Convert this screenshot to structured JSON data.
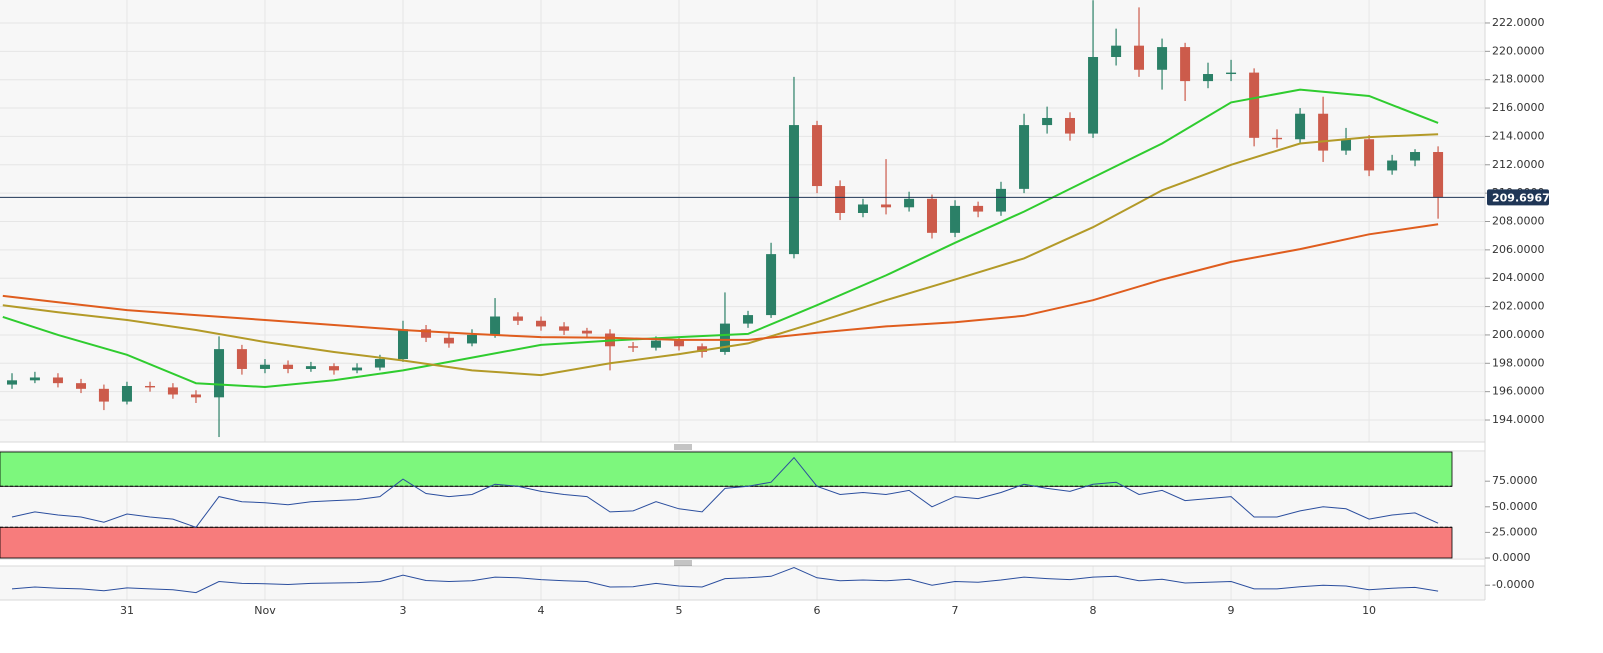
{
  "chart_data": [
    {
      "type": "candlestick",
      "x": [
        0.167,
        0.333,
        0.5,
        0.667,
        0.833,
        1.0,
        1.167,
        1.333,
        1.5,
        1.667,
        1.833,
        2.0,
        2.167,
        2.333,
        2.5,
        2.667,
        2.833,
        3.0,
        3.167,
        3.333,
        3.5,
        3.667,
        3.833,
        4.0,
        4.167,
        4.333,
        4.5,
        4.667,
        4.833,
        5.0,
        5.167,
        5.333,
        5.5,
        5.667,
        5.833,
        6.0,
        6.167,
        6.333,
        6.5,
        6.667,
        6.833,
        7.0,
        7.167,
        7.333,
        7.5,
        7.667,
        7.833,
        8.0,
        8.167,
        8.333,
        8.5,
        8.667,
        8.833,
        9.0,
        9.167,
        9.333,
        9.5,
        9.667,
        9.833,
        10.0,
        10.167,
        10.333,
        10.5
      ],
      "open": [
        196.5,
        196.8,
        197.0,
        196.6,
        196.2,
        195.3,
        196.4,
        196.3,
        195.8,
        195.6,
        199.0,
        197.6,
        197.9,
        197.6,
        197.8,
        197.5,
        197.7,
        198.3,
        200.4,
        199.8,
        199.4,
        200.0,
        201.3,
        201.0,
        200.6,
        200.3,
        200.1,
        199.2,
        199.1,
        199.6,
        199.2,
        198.8,
        200.8,
        201.4,
        205.7,
        214.8,
        210.5,
        208.6,
        209.2,
        209.0,
        209.6,
        207.2,
        209.1,
        208.7,
        210.3,
        214.8,
        215.3,
        214.2,
        219.6,
        220.4,
        218.7,
        220.3,
        217.9,
        218.4,
        218.5,
        213.9,
        213.8,
        215.6,
        213.0,
        213.8,
        211.6,
        212.3,
        212.9
      ],
      "high": [
        197.3,
        197.4,
        197.3,
        196.9,
        196.5,
        196.7,
        196.7,
        196.6,
        196.1,
        199.9,
        199.3,
        198.3,
        198.2,
        198.1,
        198.0,
        198.0,
        198.6,
        201.0,
        200.7,
        200.1,
        200.4,
        202.6,
        201.6,
        201.3,
        200.9,
        200.5,
        200.4,
        199.5,
        199.9,
        199.9,
        199.4,
        203.0,
        201.7,
        206.5,
        218.2,
        215.1,
        210.9,
        209.6,
        212.4,
        210.1,
        209.9,
        209.5,
        209.4,
        210.8,
        215.6,
        216.1,
        215.7,
        223.6,
        221.6,
        223.1,
        220.9,
        220.6,
        219.2,
        219.4,
        218.8,
        214.5,
        216.0,
        216.8,
        214.6,
        214.1,
        212.7,
        213.1,
        213.3
      ],
      "low": [
        196.2,
        196.6,
        196.3,
        195.9,
        194.7,
        195.1,
        196.0,
        195.5,
        195.2,
        192.8,
        197.2,
        197.3,
        197.3,
        197.4,
        197.2,
        197.3,
        197.5,
        198.1,
        199.5,
        199.1,
        199.2,
        199.8,
        200.7,
        200.3,
        200.0,
        199.8,
        197.5,
        198.8,
        198.9,
        198.9,
        198.4,
        198.6,
        200.5,
        201.2,
        205.4,
        210.0,
        208.1,
        208.3,
        208.5,
        208.7,
        206.8,
        206.9,
        208.3,
        208.4,
        210.0,
        214.2,
        213.7,
        213.9,
        219.0,
        218.2,
        217.3,
        216.5,
        217.4,
        217.9,
        213.3,
        213.2,
        213.5,
        212.2,
        212.7,
        211.2,
        211.3,
        211.9,
        208.2
      ],
      "close": [
        196.8,
        197.0,
        196.6,
        196.2,
        195.3,
        196.4,
        196.3,
        195.8,
        195.6,
        199.0,
        197.6,
        197.9,
        197.6,
        197.8,
        197.5,
        197.7,
        198.3,
        200.4,
        199.8,
        199.4,
        200.0,
        201.3,
        201.0,
        200.6,
        200.3,
        200.1,
        199.2,
        199.1,
        199.6,
        199.2,
        198.8,
        200.8,
        201.4,
        205.7,
        214.8,
        210.5,
        208.6,
        209.2,
        209.0,
        209.6,
        207.2,
        209.1,
        208.7,
        210.3,
        214.8,
        215.3,
        214.2,
        219.6,
        220.4,
        218.7,
        220.3,
        217.9,
        218.4,
        218.5,
        213.9,
        213.8,
        215.6,
        213.0,
        213.8,
        211.6,
        212.3,
        212.9,
        209.7
      ],
      "up_color": "#2b8067",
      "down_color": "#cc5b4b",
      "series": [
        {
          "color": "#2fcc2f",
          "x": [
            0.1,
            0.5,
            1.0,
            1.5,
            2.0,
            2.5,
            3.0,
            3.5,
            4.0,
            4.5,
            5.0,
            5.5,
            6.0,
            6.5,
            7.0,
            7.5,
            8.0,
            8.5,
            9.0,
            9.5,
            10.0,
            10.5
          ],
          "values": [
            201.27,
            200.0,
            198.6,
            196.6,
            196.33,
            196.8,
            197.5,
            198.4,
            199.3,
            199.6,
            199.85,
            200.07,
            202.1,
            204.2,
            206.5,
            208.7,
            211.1,
            213.5,
            216.4,
            217.3,
            216.85,
            214.95
          ]
        },
        {
          "color": "#b39a28",
          "x": [
            0.1,
            0.5,
            1.0,
            1.5,
            2.0,
            2.5,
            3.0,
            3.5,
            4.0,
            4.5,
            5.0,
            5.5,
            6.0,
            6.5,
            7.0,
            7.5,
            8.0,
            8.5,
            9.0,
            9.5,
            10.0,
            10.5
          ],
          "values": [
            202.1,
            201.6,
            201.05,
            200.35,
            199.5,
            198.8,
            198.2,
            197.5,
            197.17,
            198.0,
            198.65,
            199.4,
            200.9,
            202.45,
            203.9,
            205.4,
            207.6,
            210.2,
            212.0,
            213.5,
            213.95,
            214.15
          ]
        },
        {
          "color": "#df5d1e",
          "x": [
            0.1,
            0.5,
            1.0,
            1.5,
            2.0,
            2.5,
            3.0,
            3.5,
            4.0,
            4.5,
            5.0,
            5.5,
            6.0,
            6.5,
            7.0,
            7.5,
            8.0,
            8.5,
            9.0,
            9.5,
            10.0,
            10.5
          ],
          "values": [
            202.75,
            202.3,
            201.75,
            201.4,
            201.05,
            200.7,
            200.35,
            200.07,
            199.85,
            199.8,
            199.65,
            199.65,
            200.15,
            200.6,
            200.9,
            201.35,
            202.45,
            203.9,
            205.15,
            206.05,
            207.1,
            207.8
          ]
        }
      ],
      "last_price": 209.69674,
      "last_price_color": "#1f3656",
      "xlim": [
        0.08,
        10.84
      ],
      "xticks": [
        {
          "value": 1,
          "label": "31"
        },
        {
          "value": 2,
          "label": "Nov"
        },
        3,
        4,
        5,
        6,
        7,
        8,
        9,
        10
      ],
      "ylim": [
        192.45,
        223.62
      ],
      "yticks": [
        {
          "value": 194,
          "label": "194.0000"
        },
        {
          "value": 196,
          "label": "196.0000"
        },
        {
          "value": 198,
          "label": "198.0000"
        },
        {
          "value": 200,
          "label": "200.0000"
        },
        {
          "value": 202,
          "label": "202.0000"
        },
        {
          "value": 204,
          "label": "204.0000"
        },
        {
          "value": 206,
          "label": "206.0000"
        },
        {
          "value": 208,
          "label": "208.0000"
        },
        {
          "value": 210,
          "label": "210.0000"
        },
        {
          "value": 212,
          "label": "212.0000"
        },
        {
          "value": 214,
          "label": "214.0000"
        },
        {
          "value": 216,
          "label": "216.0000"
        },
        {
          "value": 218,
          "label": "218.0000"
        },
        {
          "value": 220,
          "label": "220.0000"
        },
        {
          "value": 222,
          "label": "222.0000"
        }
      ],
      "grid": true
    },
    {
      "type": "line",
      "color": "#2b4e9e",
      "values": [
        40,
        45,
        42,
        40,
        35,
        43,
        40,
        38,
        30,
        60,
        55,
        54,
        52,
        55,
        56,
        57,
        60,
        77,
        63,
        60,
        62,
        72,
        70,
        65,
        62,
        60,
        45,
        46,
        55,
        48,
        45,
        68,
        70,
        74,
        98,
        70,
        62,
        64,
        62,
        66,
        50,
        60,
        58,
        64,
        72,
        68,
        65,
        72,
        74,
        62,
        66,
        56,
        58,
        60,
        40,
        40,
        46,
        50,
        48,
        38,
        42,
        44,
        34
      ],
      "bands": [
        {
          "from": 70,
          "to": 103.5,
          "color": "#7df77d"
        },
        {
          "from": 0,
          "to": 30,
          "color": "#f77c7c"
        }
      ],
      "ylim": [
        0,
        103.5
      ],
      "yticks": [
        {
          "value": 75,
          "label": "75.0000"
        },
        {
          "value": 50,
          "label": "50.0000"
        },
        {
          "value": 25,
          "label": "25.0000"
        },
        {
          "value": 0,
          "label": "0.0000"
        }
      ]
    },
    {
      "type": "line",
      "color": "#2b4e9e",
      "values": [
        -0.25,
        -0.12,
        -0.2,
        -0.25,
        -0.38,
        -0.18,
        -0.25,
        -0.3,
        -0.5,
        0.25,
        0.12,
        0.1,
        0.05,
        0.12,
        0.15,
        0.18,
        0.25,
        0.68,
        0.32,
        0.25,
        0.3,
        0.55,
        0.5,
        0.38,
        0.3,
        0.25,
        -0.12,
        -0.1,
        0.12,
        -0.05,
        -0.12,
        0.45,
        0.5,
        0.6,
        1.2,
        0.5,
        0.3,
        0.35,
        0.3,
        0.4,
        0,
        0.25,
        0.2,
        0.35,
        0.55,
        0.45,
        0.38,
        0.55,
        0.6,
        0.3,
        0.4,
        0.15,
        0.2,
        0.25,
        -0.25,
        -0.25,
        -0.1,
        0,
        -0.05,
        -0.3,
        -0.2,
        -0.15,
        -0.4
      ],
      "ylim": [
        -1,
        1.3
      ],
      "yticks": [
        {
          "value": 0,
          "label": "-0.0000"
        }
      ]
    }
  ]
}
